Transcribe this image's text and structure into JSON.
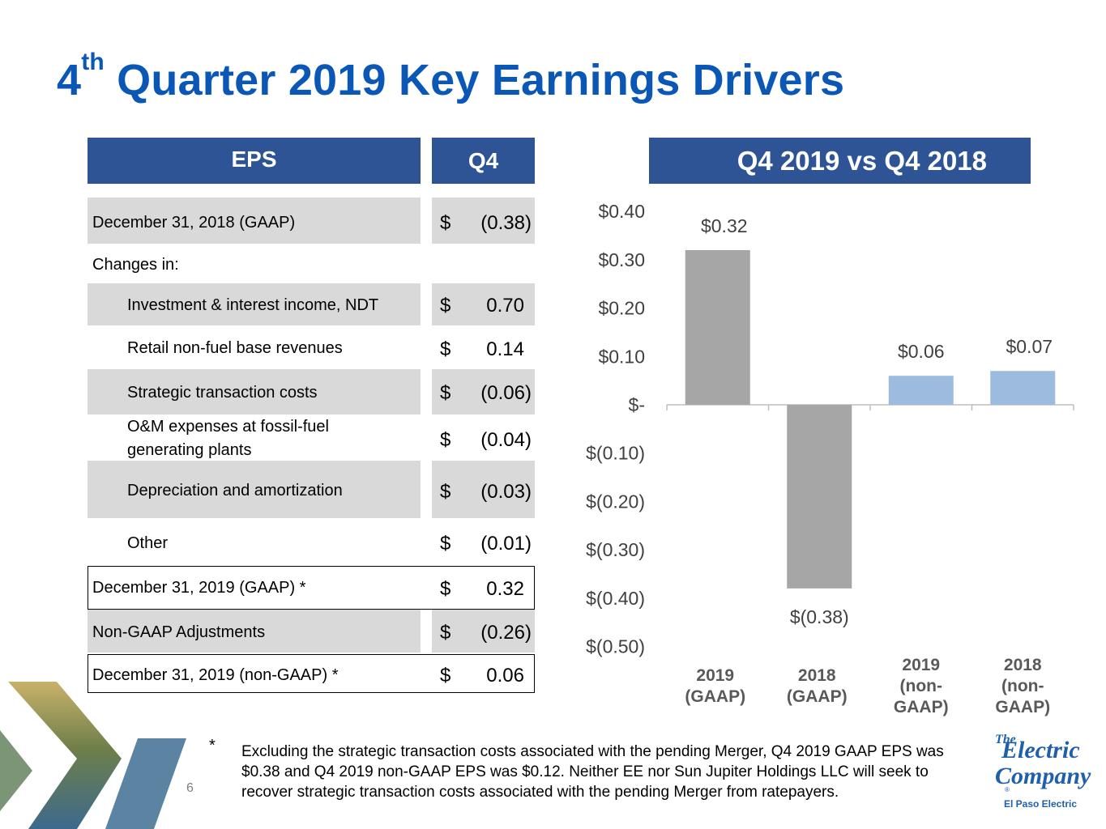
{
  "title": {
    "prefix": "4",
    "sup": "th",
    "rest": "Quarter 2019 Key Earnings Drivers"
  },
  "table": {
    "header_left": "EPS",
    "header_right": "Q4",
    "rows": [
      {
        "label": "December 31, 2018 (GAAP)",
        "dollar": "$",
        "value": "(0.38)"
      },
      {
        "label": "Changes in:",
        "dollar": "",
        "value": ""
      },
      {
        "label": "Investment & interest income, NDT",
        "dollar": "$",
        "value": "0.70"
      },
      {
        "label": "Retail non-fuel base revenues",
        "dollar": "$",
        "value": "0.14"
      },
      {
        "label": "Strategic transaction costs",
        "dollar": "$",
        "value": "(0.06)"
      },
      {
        "label": "O&M expenses at fossil-fuel",
        "label2": "generating plants",
        "dollar": "$",
        "value": "(0.04)"
      },
      {
        "label": "Depreciation and amortization",
        "dollar": "$",
        "value": "(0.03)"
      },
      {
        "label": "Other",
        "dollar": "$",
        "value": "(0.01)"
      },
      {
        "label": "December 31, 2019 (GAAP) *",
        "dollar": "$",
        "value": "0.32"
      },
      {
        "label": "Non-GAAP Adjustments",
        "dollar": "$",
        "value": "(0.26)"
      },
      {
        "label": "December 31, 2019 (non-GAAP) *",
        "dollar": "$",
        "value": "0.06"
      }
    ]
  },
  "chart_header": "Q4 2019  vs  Q4 2018",
  "chart_data": {
    "type": "bar",
    "title": "Q4 2019  vs  Q4 2018",
    "categories": [
      [
        "2019",
        "(GAAP)"
      ],
      [
        "2018",
        "(GAAP)"
      ],
      [
        "2019",
        "(non-",
        "GAAP)"
      ],
      [
        "2018",
        "(non-",
        "GAAP)"
      ]
    ],
    "values": [
      0.32,
      -0.38,
      0.06,
      0.07
    ],
    "data_labels": [
      "$0.32",
      "$(0.38)",
      "$0.06",
      "$0.07"
    ],
    "colors": [
      "#a6a6a6",
      "#a6a6a6",
      "#9dbbdf",
      "#9dbbdf"
    ],
    "ylim": [
      -0.5,
      0.4
    ],
    "yticks": [
      0.4,
      0.3,
      0.2,
      0.1,
      0,
      -0.1,
      -0.2,
      -0.3,
      -0.4,
      -0.5
    ],
    "ytick_labels": [
      "$0.40",
      "$0.30",
      "$0.20",
      "$0.10",
      "$-",
      "$(0.10)",
      "$(0.20)",
      "$(0.30)",
      "$(0.40)",
      "$(0.50)"
    ],
    "xlabel": "",
    "ylabel": "",
    "grid": false,
    "legend": "none"
  },
  "footnote": {
    "star": "*",
    "text": "Excluding the strategic transaction costs associated with the pending Merger, Q4 2019 GAAP EPS was $0.38 and Q4 2019 non-GAAP EPS was $0.12.  Neither EE nor Sun Jupiter Holdings LLC will seek to recover strategic transaction costs associated with the pending Merger from ratepayers."
  },
  "page_number": "6",
  "logo": {
    "line1": "The",
    "line2": "Electric",
    "line3": "Company",
    "reg": "®",
    "caption": "El Paso Electric"
  },
  "colors": {
    "title": "#0b57b5",
    "header": "#2e5496",
    "shade": "#d9d9d9",
    "bar_gaap": "#a6a6a6",
    "bar_nongaap": "#9dbbdf"
  }
}
